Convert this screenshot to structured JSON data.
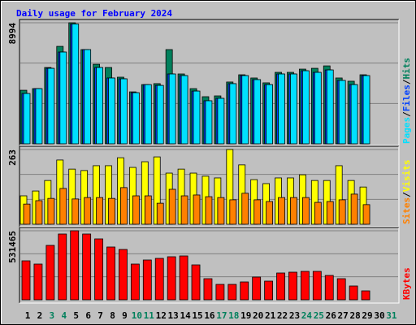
{
  "chart_data": [
    {
      "type": "bar",
      "title": "Daily usage for February 2024",
      "ylim": [
        0,
        8994
      ],
      "yticks": [
        8994
      ],
      "legend_separator": "/",
      "series": [
        {
          "name": "Hits",
          "color": "#00805c",
          "values": [
            3980,
            4100,
            5670,
            7240,
            8994,
            7000,
            5910,
            5670,
            4950,
            3860,
            4400,
            4470,
            7000,
            5190,
            4100,
            3500,
            3560,
            4590,
            5130,
            4890,
            4530,
            5310,
            5310,
            5550,
            5610,
            5790,
            4890,
            4650,
            5130,
            null,
            null
          ]
        },
        {
          "name": "Files",
          "color": "#0040ff",
          "values": [
            3740,
            4100,
            5610,
            6820,
            8900,
            7000,
            5670,
            4890,
            4830,
            3800,
            4400,
            4340,
            5190,
            5070,
            3920,
            3200,
            3380,
            4470,
            5070,
            4770,
            4400,
            5190,
            5190,
            5430,
            5310,
            5490,
            4710,
            4400,
            5070,
            null,
            null
          ]
        },
        {
          "name": "Pages",
          "color": "#00e0ff",
          "values": [
            3740,
            4100,
            5610,
            6820,
            8900,
            7000,
            5670,
            4890,
            4830,
            3800,
            4400,
            4340,
            5190,
            5070,
            3920,
            3200,
            3380,
            4470,
            5070,
            4770,
            4400,
            5190,
            5190,
            5430,
            5310,
            5490,
            4710,
            4400,
            5070,
            null,
            null
          ]
        }
      ]
    },
    {
      "type": "bar",
      "ylim": [
        0,
        263
      ],
      "yticks": [
        263
      ],
      "legend_separator": "/",
      "series": [
        {
          "name": "Visits",
          "color": "#ffff00",
          "values": [
            100,
            117,
            154,
            226,
            194,
            189,
            206,
            206,
            234,
            200,
            220,
            237,
            180,
            194,
            180,
            169,
            163,
            263,
            209,
            157,
            143,
            163,
            163,
            174,
            154,
            154,
            206,
            154,
            131,
            null,
            null
          ]
        },
        {
          "name": "Sites",
          "color": "#ff8000",
          "values": [
            71,
            83,
            91,
            126,
            89,
            94,
            94,
            91,
            129,
            100,
            100,
            74,
            123,
            100,
            103,
            97,
            94,
            86,
            109,
            86,
            80,
            94,
            94,
            94,
            77,
            80,
            86,
            106,
            69,
            null,
            null
          ]
        }
      ]
    },
    {
      "type": "bar",
      "ylim": [
        0,
        531465
      ],
      "yticks": [
        531465
      ],
      "categories": [
        "1",
        "2",
        "3",
        "4",
        "5",
        "6",
        "7",
        "8",
        "9",
        "10",
        "11",
        "12",
        "13",
        "14",
        "15",
        "16",
        "17",
        "18",
        "19",
        "20",
        "21",
        "22",
        "23",
        "24",
        "25",
        "26",
        "27",
        "28",
        "29",
        "30",
        "31"
      ],
      "category_colors": [
        "#000000",
        "#000000",
        "#00805c",
        "#00805c",
        "#000000",
        "#000000",
        "#000000",
        "#000000",
        "#000000",
        "#00805c",
        "#00805c",
        "#000000",
        "#000000",
        "#000000",
        "#000000",
        "#000000",
        "#00805c",
        "#00805c",
        "#000000",
        "#000000",
        "#000000",
        "#000000",
        "#000000",
        "#00805c",
        "#00805c",
        "#000000",
        "#000000",
        "#000000",
        "#000000",
        "#000000",
        "#00805c"
      ],
      "series": [
        {
          "name": "KBytes",
          "color": "#ff0000",
          "values": [
            300100,
            275100,
            418900,
            506400,
            531465,
            506400,
            468900,
            406400,
            387600,
            275100,
            306400,
            318900,
            331400,
            337600,
            268800,
            162600,
            118800,
            118800,
            137500,
            175100,
            143800,
            206300,
            212600,
            218800,
            218800,
            187600,
            162600,
            106300,
            68800,
            null,
            null
          ]
        }
      ]
    }
  ]
}
